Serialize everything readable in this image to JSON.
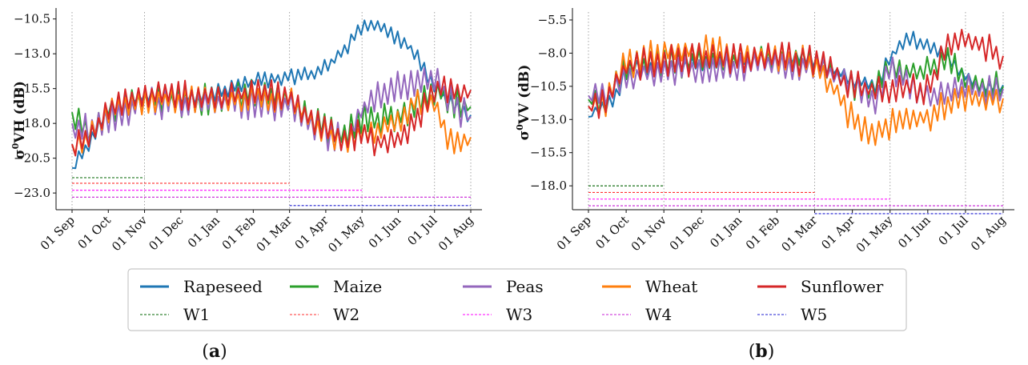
{
  "chart_data": [
    {
      "panel_label_letter": "a",
      "type": "line",
      "ylabel_base": "σ",
      "ylabel_sup": "0",
      "ylabel_rest": "VH (dB)",
      "y_ticks": [
        -10.5,
        -13.0,
        -15.5,
        -18.0,
        -20.5,
        -23.0
      ],
      "y_tick_labels": [
        "−10.5",
        "−13.0",
        "−15.5",
        "−18.0",
        "−20.5",
        "−23.0"
      ],
      "ylim": [
        -24.2,
        -10.0
      ],
      "x_tick_labels": [
        "01 Sep",
        "01 Oct",
        "01 Nov",
        "01 Dec",
        "01 Jan",
        "01 Feb",
        "01 Mar",
        "01 Apr",
        "01 May",
        "01 Jun",
        "01 Jul",
        "01 Aug"
      ],
      "vlines_at": [
        0,
        2,
        6,
        8,
        10,
        11
      ],
      "windows": [
        {
          "name": "W1",
          "start": 0,
          "end": 2,
          "y": -21.9
        },
        {
          "name": "W2",
          "start": 0,
          "end": 6,
          "y": -22.3
        },
        {
          "name": "W3",
          "start": 0,
          "end": 8,
          "y": -22.8
        },
        {
          "name": "W4",
          "start": 0,
          "end": 11,
          "y": -23.3
        },
        {
          "name": "W5",
          "start": 6,
          "end": 11,
          "y": -23.9
        }
      ],
      "series": [
        {
          "name": "Rapeseed",
          "anchors": [
            [
              0,
              -21.2
            ],
            [
              0.25,
              -20.0
            ],
            [
              0.5,
              -19.5
            ],
            [
              1,
              -17.0
            ],
            [
              2,
              -16.0
            ],
            [
              3,
              -16.2
            ],
            [
              4,
              -15.8
            ],
            [
              5,
              -15.0
            ],
            [
              6,
              -14.7
            ],
            [
              6.6,
              -14.4
            ],
            [
              7,
              -14.0
            ],
            [
              7.5,
              -12.8
            ],
            [
              8,
              -11.0
            ],
            [
              8.5,
              -11.1
            ],
            [
              9,
              -11.8
            ],
            [
              9.4,
              -12.8
            ],
            [
              9.8,
              -14.5
            ],
            [
              10.2,
              -16.0
            ],
            [
              10.6,
              -16.8
            ],
            [
              11,
              -17.4
            ]
          ],
          "noise": 0.45
        },
        {
          "name": "Maize",
          "anchors": [
            [
              0,
              -17.2
            ],
            [
              0.5,
              -19.0
            ],
            [
              1,
              -17.0
            ],
            [
              2,
              -16.2
            ],
            [
              3,
              -16.4
            ],
            [
              4,
              -16.2
            ],
            [
              5,
              -16.0
            ],
            [
              6,
              -16.3
            ],
            [
              7,
              -18.5
            ],
            [
              7.6,
              -18.8
            ],
            [
              8,
              -17.5
            ],
            [
              8.5,
              -17.8
            ],
            [
              9,
              -17.5
            ],
            [
              9.5,
              -16.5
            ],
            [
              10,
              -15.5
            ],
            [
              10.5,
              -16.4
            ],
            [
              11,
              -16.8
            ]
          ],
          "noise": 0.85
        },
        {
          "name": "Peas",
          "anchors": [
            [
              0,
              -18.0
            ],
            [
              0.5,
              -18.5
            ],
            [
              1,
              -17.5
            ],
            [
              2,
              -16.6
            ],
            [
              3,
              -16.6
            ],
            [
              4,
              -16.6
            ],
            [
              5,
              -16.5
            ],
            [
              6,
              -16.6
            ],
            [
              7,
              -18.8
            ],
            [
              7.6,
              -19.2
            ],
            [
              8,
              -17.0
            ],
            [
              8.5,
              -16.0
            ],
            [
              9,
              -15.4
            ],
            [
              9.5,
              -14.8
            ],
            [
              9.8,
              -14.6
            ],
            [
              10.2,
              -15.5
            ],
            [
              10.6,
              -16.8
            ],
            [
              11,
              -17.5
            ]
          ],
          "noise": 0.9
        },
        {
          "name": "Wheat",
          "anchors": [
            [
              0,
              -19.5
            ],
            [
              0.5,
              -19.0
            ],
            [
              1,
              -17.2
            ],
            [
              2,
              -16.4
            ],
            [
              3,
              -16.3
            ],
            [
              4,
              -16.2
            ],
            [
              5,
              -16.2
            ],
            [
              6,
              -16.3
            ],
            [
              7,
              -18.7
            ],
            [
              7.6,
              -19.2
            ],
            [
              8,
              -18.6
            ],
            [
              8.5,
              -18.6
            ],
            [
              9,
              -17.8
            ],
            [
              9.5,
              -16.5
            ],
            [
              10,
              -16.5
            ],
            [
              10.3,
              -19.0
            ],
            [
              10.7,
              -19.6
            ],
            [
              11,
              -19.0
            ]
          ],
          "noise": 0.7
        },
        {
          "name": "Sunflower",
          "anchors": [
            [
              0,
              -19.5
            ],
            [
              0.5,
              -19.2
            ],
            [
              1,
              -17.0
            ],
            [
              2,
              -16.0
            ],
            [
              3,
              -16.0
            ],
            [
              4,
              -16.0
            ],
            [
              5,
              -15.8
            ],
            [
              6,
              -16.2
            ],
            [
              7,
              -18.5
            ],
            [
              7.6,
              -19.0
            ],
            [
              8,
              -18.8
            ],
            [
              8.5,
              -19.4
            ],
            [
              9,
              -19.2
            ],
            [
              9.5,
              -17.8
            ],
            [
              10,
              -15.5
            ],
            [
              10.5,
              -15.8
            ],
            [
              11,
              -15.6
            ]
          ],
          "noise": 0.8
        }
      ]
    },
    {
      "panel_label_letter": "b",
      "type": "line",
      "ylabel_base": "σ",
      "ylabel_sup": "0",
      "ylabel_rest": "VV (dB)",
      "y_ticks": [
        -5.5,
        -8.0,
        -10.5,
        -13.0,
        -15.5,
        -18.0
      ],
      "y_tick_labels": [
        "−5.5",
        "−8.0",
        "−10.5",
        "−13.0",
        "−15.5",
        "−18.0"
      ],
      "ylim": [
        -19.8,
        -4.9
      ],
      "x_tick_labels": [
        "01 Sep",
        "01 Oct",
        "01 Nov",
        "01 Dec",
        "01 Jan",
        "01 Feb",
        "01 Mar",
        "01 Apr",
        "01 May",
        "01 Jun",
        "01 Jul",
        "01 Aug"
      ],
      "vlines_at": [
        0,
        2,
        6,
        8,
        10,
        11
      ],
      "windows": [
        {
          "name": "W1",
          "start": 0,
          "end": 2,
          "y": -18.0
        },
        {
          "name": "W2",
          "start": 0,
          "end": 6,
          "y": -18.5
        },
        {
          "name": "W3",
          "start": 0,
          "end": 8,
          "y": -19.0
        },
        {
          "name": "W4",
          "start": 0,
          "end": 11,
          "y": -19.5
        },
        {
          "name": "W5",
          "start": 6,
          "end": 11,
          "y": -20.1
        }
      ],
      "series": [
        {
          "name": "Rapeseed",
          "anchors": [
            [
              0,
              -12.8
            ],
            [
              0.3,
              -12.0
            ],
            [
              0.7,
              -11.6
            ],
            [
              1,
              -9.2
            ],
            [
              2,
              -9.0
            ],
            [
              3,
              -8.8
            ],
            [
              4,
              -8.5
            ],
            [
              5,
              -8.3
            ],
            [
              6,
              -8.5
            ],
            [
              7,
              -10.0
            ],
            [
              7.6,
              -10.5
            ],
            [
              8,
              -8.4
            ],
            [
              8.4,
              -7.0
            ],
            [
              9,
              -7.2
            ],
            [
              9.5,
              -8.2
            ],
            [
              10,
              -9.8
            ],
            [
              10.5,
              -10.6
            ],
            [
              11,
              -10.4
            ]
          ],
          "noise": 0.5
        },
        {
          "name": "Maize",
          "anchors": [
            [
              0,
              -11.5
            ],
            [
              0.5,
              -11.4
            ],
            [
              1,
              -9.0
            ],
            [
              2,
              -8.8
            ],
            [
              3,
              -8.7
            ],
            [
              4,
              -8.6
            ],
            [
              5,
              -8.5
            ],
            [
              6,
              -8.6
            ],
            [
              7,
              -10.5
            ],
            [
              7.6,
              -10.8
            ],
            [
              8,
              -9.0
            ],
            [
              8.5,
              -9.5
            ],
            [
              9,
              -9.2
            ],
            [
              9.5,
              -8.5
            ],
            [
              10,
              -10.0
            ],
            [
              10.5,
              -10.5
            ],
            [
              11,
              -10.5
            ]
          ],
          "noise": 0.8
        },
        {
          "name": "Peas",
          "anchors": [
            [
              0,
              -11.2
            ],
            [
              0.5,
              -11.3
            ],
            [
              1,
              -9.8
            ],
            [
              2,
              -9.5
            ],
            [
              3,
              -9.2
            ],
            [
              4,
              -9.0
            ],
            [
              5,
              -8.8
            ],
            [
              6,
              -9.0
            ],
            [
              7,
              -10.5
            ],
            [
              7.6,
              -11.5
            ],
            [
              8,
              -9.0
            ],
            [
              8.5,
              -10.5
            ],
            [
              9,
              -11.2
            ],
            [
              9.5,
              -11.0
            ],
            [
              10,
              -10.5
            ],
            [
              10.5,
              -10.8
            ],
            [
              11,
              -10.7
            ]
          ],
          "noise": 0.8
        },
        {
          "name": "Wheat",
          "anchors": [
            [
              0,
              -12.0
            ],
            [
              0.5,
              -11.5
            ],
            [
              1,
              -8.8
            ],
            [
              2,
              -8.0
            ],
            [
              3,
              -7.8
            ],
            [
              4,
              -8.0
            ],
            [
              5,
              -8.2
            ],
            [
              6,
              -8.8
            ],
            [
              6.6,
              -11.0
            ],
            [
              7,
              -13.0
            ],
            [
              7.6,
              -14.0
            ],
            [
              8,
              -13.5
            ],
            [
              8.4,
              -13.0
            ],
            [
              9,
              -12.8
            ],
            [
              9.5,
              -11.8
            ],
            [
              10,
              -11.2
            ],
            [
              10.5,
              -11.6
            ],
            [
              11,
              -11.4
            ]
          ],
          "noise": 0.9
        },
        {
          "name": "Sunflower",
          "anchors": [
            [
              0,
              -12.0
            ],
            [
              0.5,
              -11.5
            ],
            [
              1,
              -9.0
            ],
            [
              2,
              -8.6
            ],
            [
              3,
              -8.5
            ],
            [
              4,
              -8.5
            ],
            [
              5,
              -8.4
            ],
            [
              6,
              -8.6
            ],
            [
              7,
              -10.5
            ],
            [
              7.6,
              -10.8
            ],
            [
              8,
              -10.6
            ],
            [
              8.5,
              -10.5
            ],
            [
              9,
              -10.8
            ],
            [
              9.3,
              -9.0
            ],
            [
              9.6,
              -7.2
            ],
            [
              10,
              -7.0
            ],
            [
              10.5,
              -7.5
            ],
            [
              11,
              -8.2
            ]
          ],
          "noise": 0.9
        }
      ]
    }
  ],
  "legend": {
    "items": [
      {
        "label": "Rapeseed",
        "color": "#1f77b4",
        "style": "solid"
      },
      {
        "label": "Maize",
        "color": "#2ca02c",
        "style": "solid"
      },
      {
        "label": "Peas",
        "color": "#9467bd",
        "style": "solid"
      },
      {
        "label": "Wheat",
        "color": "#ff7f0e",
        "style": "solid"
      },
      {
        "label": "Sunflower",
        "color": "#d62728",
        "style": "solid"
      },
      {
        "label": "W1",
        "color": "#006400",
        "style": "dashed"
      },
      {
        "label": "W2",
        "color": "#ff3030",
        "style": "dashed"
      },
      {
        "label": "W3",
        "color": "#ff00ff",
        "style": "dashed"
      },
      {
        "label": "W4",
        "color": "#c71fd6",
        "style": "dashed"
      },
      {
        "label": "W5",
        "color": "#1f1fd0",
        "style": "dashed"
      }
    ]
  },
  "colors": {
    "Rapeseed": "#1f77b4",
    "Maize": "#2ca02c",
    "Peas": "#9467bd",
    "Wheat": "#ff7f0e",
    "Sunflower": "#d62728",
    "W1": "#006400",
    "W2": "#ff3030",
    "W3": "#ff00ff",
    "W4": "#c71fd6",
    "W5": "#1f1fd0"
  }
}
